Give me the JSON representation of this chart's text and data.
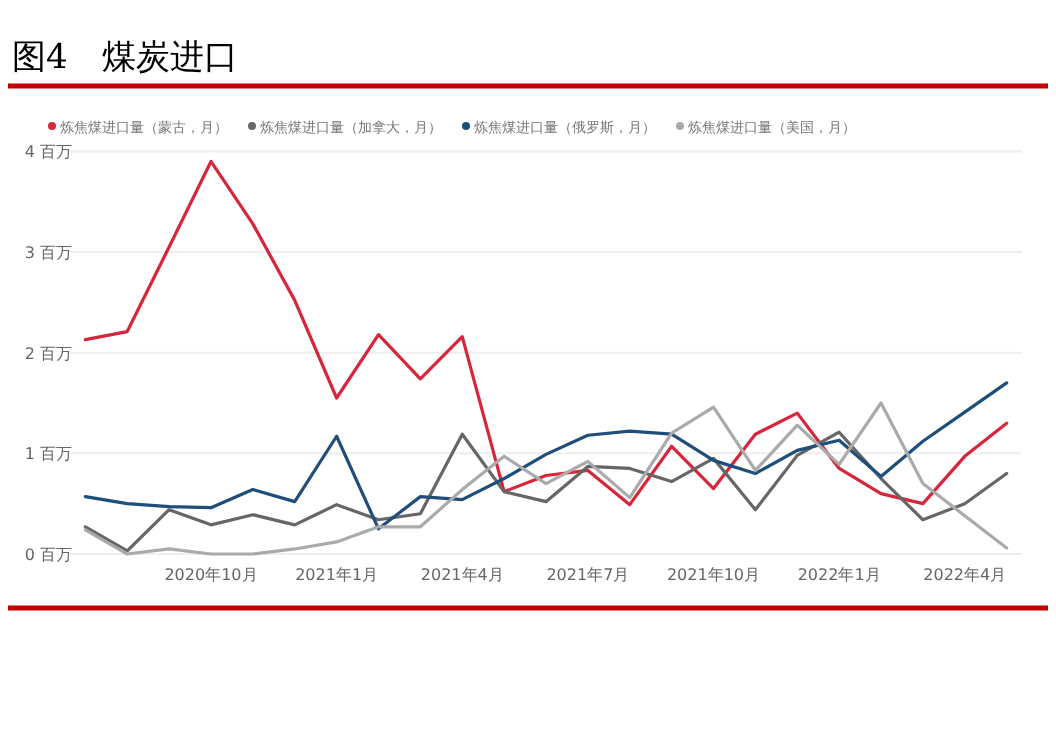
{
  "chart_data": {
    "type": "line",
    "title": "图4　煤炭进口",
    "x": [
      "2020-07",
      "2020-08",
      "2020-09",
      "2020-10",
      "2020-11",
      "2020-12",
      "2021-01",
      "2021-02",
      "2021-03",
      "2021-04",
      "2021-05",
      "2021-06",
      "2021-07",
      "2021-08",
      "2021-09",
      "2021-10",
      "2021-11",
      "2021-12",
      "2022-01",
      "2022-02",
      "2022-03",
      "2022-04",
      "2022-05"
    ],
    "series": [
      {
        "name": "炼焦煤进口量（蒙古，月）",
        "color": "#d7253a",
        "values": [
          2.13,
          2.21,
          3.05,
          3.9,
          3.28,
          2.52,
          1.55,
          2.18,
          1.74,
          2.16,
          0.62,
          0.78,
          0.83,
          0.49,
          1.07,
          0.65,
          1.19,
          1.4,
          0.85,
          0.6,
          0.5,
          0.97,
          1.3
        ]
      },
      {
        "name": "炼焦煤进口量（加拿大，月）",
        "color": "#666666",
        "values": [
          0.27,
          0.03,
          0.44,
          0.29,
          0.39,
          0.29,
          0.49,
          0.34,
          0.4,
          1.19,
          0.62,
          0.52,
          0.87,
          0.85,
          0.72,
          0.95,
          0.44,
          0.98,
          1.21,
          0.75,
          0.34,
          0.5,
          0.8
        ]
      },
      {
        "name": "炼焦煤进口量（俄罗斯，月）",
        "color": "#1f4e79",
        "values": [
          0.57,
          0.5,
          0.47,
          0.46,
          0.64,
          0.52,
          1.17,
          0.25,
          0.57,
          0.54,
          0.75,
          0.99,
          1.18,
          1.22,
          1.19,
          0.93,
          0.8,
          1.03,
          1.13,
          0.77,
          1.12,
          1.41,
          1.7
        ]
      },
      {
        "name": "炼焦煤进口量（美国，月）",
        "color": "#aaaaaa",
        "values": [
          0.24,
          0.0,
          0.05,
          0.0,
          0.0,
          0.05,
          0.12,
          0.27,
          0.27,
          0.64,
          0.97,
          0.7,
          0.92,
          0.56,
          1.2,
          1.46,
          0.83,
          1.28,
          0.89,
          1.5,
          0.7,
          0.38,
          0.06
        ]
      }
    ],
    "xlim": [
      "2020-06-20",
      "2022-05-12"
    ],
    "xticks": [
      {
        "value": "2020-10",
        "label": "2020年10月"
      },
      {
        "value": "2021-01",
        "label": "2021年1月"
      },
      {
        "value": "2021-04",
        "label": "2021年4月"
      },
      {
        "value": "2021-07",
        "label": "2021年7月"
      },
      {
        "value": "2021-10",
        "label": "2021年10月"
      },
      {
        "value": "2022-01",
        "label": "2022年1月"
      },
      {
        "value": "2022-04",
        "label": "2022年4月"
      }
    ],
    "ylim": [
      0,
      4
    ],
    "yticks": [
      {
        "value": 0,
        "label": "0 百万"
      },
      {
        "value": 1,
        "label": "1 百万"
      },
      {
        "value": 2,
        "label": "2 百万"
      },
      {
        "value": 3,
        "label": "3 百万"
      },
      {
        "value": 4,
        "label": "4 百万"
      }
    ],
    "grid": "y",
    "legend": "top",
    "line_style": "solid"
  }
}
